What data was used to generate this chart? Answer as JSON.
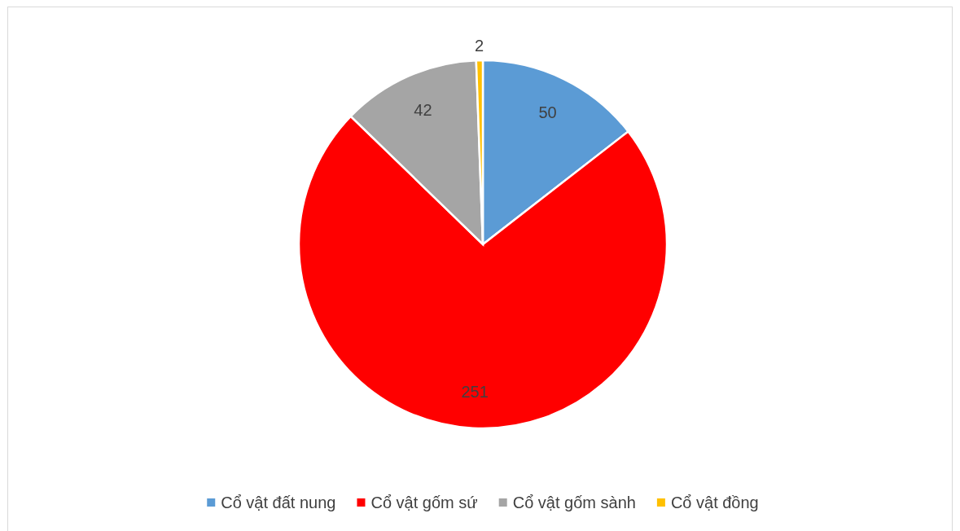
{
  "chart_data": {
    "type": "pie",
    "categories": [
      "Cổ vật đất nung",
      "Cổ vật gốm sứ",
      "Cổ vật gốm sành",
      "Cổ vật đồng"
    ],
    "values": [
      50,
      251,
      42,
      2
    ],
    "colors": [
      "#5b9bd5",
      "#ff0000",
      "#a5a5a5",
      "#ffc000"
    ],
    "data_labels": true,
    "legend": "bottom"
  }
}
